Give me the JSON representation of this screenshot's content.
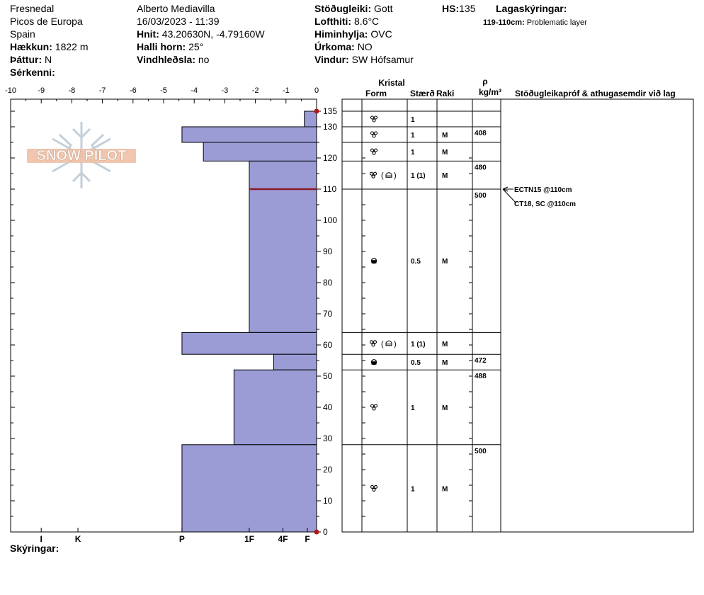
{
  "header": {
    "location": "Fresnedal",
    "region": "Picos de Europa",
    "country": "Spain",
    "elevation_label": "Hækkun:",
    "elevation_value": "1822 m",
    "aspect_label": "Þáttur:",
    "aspect_value": "N",
    "features_label": "Sérkenni:",
    "observer": "Alberto Mediavilla",
    "datetime": "16/03/2023 - 11:39",
    "coords_label": "Hnit:",
    "coords_value": "43.20630N, -4.79160W",
    "slope_label": "Halli horn:",
    "slope_value": "25°",
    "wind_loading_label": "Vindhleðsla:",
    "wind_loading_value": "no",
    "stability_label": "Stöðugleiki:",
    "stability_value": "Gott",
    "airtemp_label": "Lofthiti:",
    "airtemp_value": "8.6°C",
    "sky_label": "Himinhylja:",
    "sky_value": "OVC",
    "precip_label": "Úrkoma:",
    "precip_value": "NO",
    "wind_label": "Vindur:",
    "wind_value": "SW Hófsamur",
    "hs_label": "HS:",
    "hs_value": "135",
    "layer_notes_label": "Lagaskýringar:",
    "layer_note_range": "119-110cm:",
    "layer_note_text": "Problematic layer"
  },
  "footer": {
    "notes_label": "Skýringar:"
  },
  "logo_text": "SNOW PILOT",
  "colors": {
    "bar_fill": "#9b9bd6",
    "bar_stroke": "#000000",
    "weak_line": "#8b1a2b",
    "marker": "#b01818"
  },
  "table": {
    "kristal": "Kristal",
    "form": "Form",
    "size": "Stærð",
    "moisture": "Raki",
    "rho": "ρ",
    "rho_unit": "kg/m³",
    "tests_header": "Stöðugleikapróf & athugasemdir við lag"
  },
  "chart_data": {
    "type": "bar",
    "orientation": "horizontal",
    "temp_axis": {
      "ticks": [
        -10,
        -9,
        -8,
        -7,
        -6,
        -5,
        -4,
        -3,
        -2,
        -1,
        0
      ],
      "xlim": [
        -10,
        0
      ]
    },
    "height_axis": {
      "ticks": [
        0,
        10,
        20,
        30,
        40,
        50,
        60,
        70,
        80,
        90,
        100,
        110,
        120,
        130,
        135
      ],
      "ylim": [
        0,
        135
      ]
    },
    "hardness_axis": [
      {
        "label": "I",
        "x": -9
      },
      {
        "label": "K",
        "x": -7.8
      },
      {
        "label": "P",
        "x": -4.4
      },
      {
        "label": "1F",
        "x": -2.2
      },
      {
        "label": "4F",
        "x": -1.1
      },
      {
        "label": "F",
        "x": -0.3
      }
    ],
    "layers": [
      {
        "top": 135,
        "bottom": 130,
        "hardness": -0.4,
        "form": "crystal",
        "size": "1",
        "moisture": "",
        "density": ""
      },
      {
        "top": 130,
        "bottom": 125,
        "hardness": -4.4,
        "form": "crystal",
        "size": "1",
        "moisture": "M",
        "density": "408"
      },
      {
        "top": 125,
        "bottom": 119,
        "hardness": -3.7,
        "form": "crystal",
        "size": "1",
        "moisture": "M",
        "density": ""
      },
      {
        "top": 119,
        "bottom": 110,
        "hardness": -2.2,
        "form": "crystal-mixed",
        "size": "1 (1)",
        "moisture": "M",
        "density": "480"
      },
      {
        "top": 110,
        "bottom": 64,
        "hardness": -2.2,
        "form": "melt",
        "size": "0.5",
        "moisture": "M",
        "density": "500"
      },
      {
        "top": 64,
        "bottom": 57,
        "hardness": -4.4,
        "form": "crystal-mixed",
        "size": "1 (1)",
        "moisture": "M",
        "density": ""
      },
      {
        "top": 57,
        "bottom": 52,
        "hardness": -1.4,
        "form": "melt",
        "size": "0.5",
        "moisture": "M",
        "density": "472"
      },
      {
        "top": 52,
        "bottom": 28,
        "hardness": -2.7,
        "form": "crystal",
        "size": "1",
        "moisture": "M",
        "density": "488"
      },
      {
        "top": 28,
        "bottom": 0,
        "hardness": -4.4,
        "form": "crystal",
        "size": "1",
        "moisture": "M",
        "density": "500"
      }
    ],
    "weak_layer_height": 110,
    "tests": [
      "ECTN15 @110cm",
      "CT18, SC @110cm"
    ]
  }
}
